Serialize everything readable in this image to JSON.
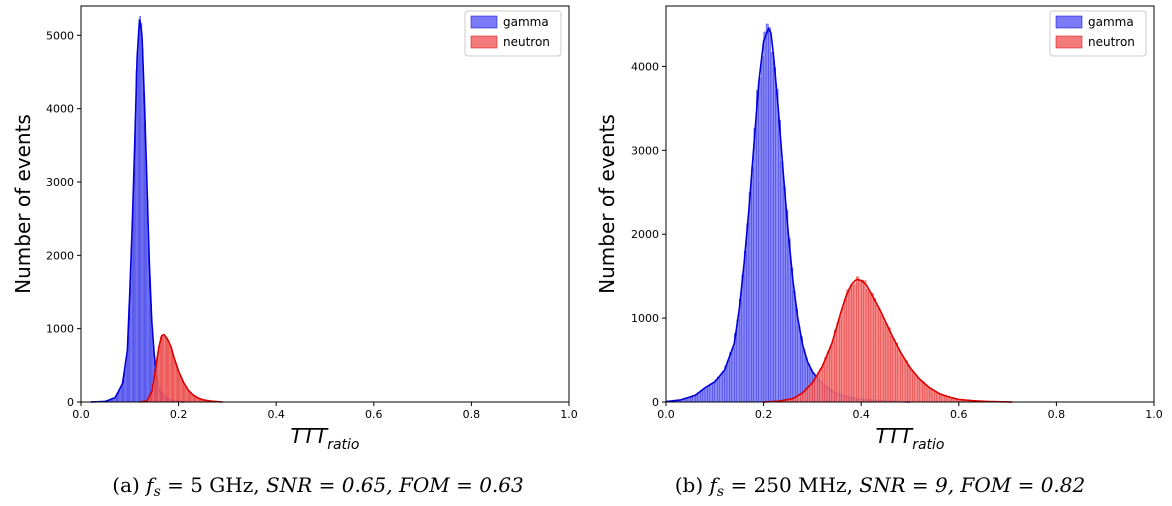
{
  "chart_data": [
    {
      "type": "bar",
      "panel": "a",
      "caption": {
        "prefix": "(a) ",
        "fs_symbol": "f",
        "fs_sub": "s",
        "fs_value": " = 5 GHz, ",
        "snr": "SNR = 0.65, ",
        "fom": "FOM = 0.63"
      },
      "xlabel": {
        "main": "TTT",
        "sub": "ratio"
      },
      "ylabel": "Number of events",
      "xlim": [
        0.0,
        1.0
      ],
      "ylim": [
        0,
        5400
      ],
      "xticks": [
        "0.0",
        "0.2",
        "0.4",
        "0.6",
        "0.8",
        "1.0"
      ],
      "yticks": [
        "0",
        "1000",
        "2000",
        "3000",
        "4000",
        "5000"
      ],
      "legend_position": "top-right",
      "series": [
        {
          "name": "gamma",
          "fill_color": "#7b7bf6",
          "line_color": "#0000dd",
          "bin_width": 0.0025,
          "points": [
            [
              0.02,
              0
            ],
            [
              0.05,
              8
            ],
            [
              0.07,
              60
            ],
            [
              0.085,
              250
            ],
            [
              0.095,
              700
            ],
            [
              0.1,
              1500
            ],
            [
              0.105,
              2400
            ],
            [
              0.11,
              3500
            ],
            [
              0.115,
              4700
            ],
            [
              0.12,
              5230
            ],
            [
              0.125,
              5000
            ],
            [
              0.13,
              4100
            ],
            [
              0.135,
              3000
            ],
            [
              0.14,
              1900
            ],
            [
              0.145,
              1100
            ],
            [
              0.15,
              650
            ],
            [
              0.155,
              350
            ],
            [
              0.16,
              170
            ],
            [
              0.17,
              80
            ],
            [
              0.18,
              35
            ],
            [
              0.19,
              12
            ],
            [
              0.21,
              0
            ]
          ]
        },
        {
          "name": "neutron",
          "fill_color": "#f47b7b",
          "line_color": "#dd0000",
          "bin_width": 0.0025,
          "points": [
            [
              0.12,
              0
            ],
            [
              0.135,
              15
            ],
            [
              0.145,
              140
            ],
            [
              0.15,
              330
            ],
            [
              0.155,
              560
            ],
            [
              0.16,
              760
            ],
            [
              0.165,
              900
            ],
            [
              0.17,
              920
            ],
            [
              0.175,
              880
            ],
            [
              0.18,
              820
            ],
            [
              0.185,
              740
            ],
            [
              0.19,
              620
            ],
            [
              0.195,
              520
            ],
            [
              0.2,
              420
            ],
            [
              0.21,
              270
            ],
            [
              0.22,
              160
            ],
            [
              0.23,
              95
            ],
            [
              0.24,
              55
            ],
            [
              0.25,
              30
            ],
            [
              0.27,
              10
            ],
            [
              0.29,
              0
            ]
          ]
        }
      ]
    },
    {
      "type": "bar",
      "panel": "b",
      "caption": {
        "prefix": "(b) ",
        "fs_symbol": "f",
        "fs_sub": "s",
        "fs_value": " = 250 MHz, ",
        "snr": "SNR = 9, ",
        "fom": "FOM = 0.82"
      },
      "xlabel": {
        "main": "TTT",
        "sub": "ratio"
      },
      "ylabel": "Number of events",
      "xlim": [
        0.0,
        1.0
      ],
      "ylim": [
        0,
        4720
      ],
      "xticks": [
        "0.0",
        "0.2",
        "0.4",
        "0.6",
        "0.8",
        "1.0"
      ],
      "yticks": [
        "0",
        "1000",
        "2000",
        "3000",
        "4000"
      ],
      "legend_position": "top-right",
      "series": [
        {
          "name": "gamma",
          "fill_color": "#7b7bf6",
          "line_color": "#0000dd",
          "bin_width": 0.005,
          "points": [
            [
              0.0,
              5
            ],
            [
              0.03,
              25
            ],
            [
              0.06,
              80
            ],
            [
              0.08,
              170
            ],
            [
              0.1,
              240
            ],
            [
              0.12,
              380
            ],
            [
              0.14,
              700
            ],
            [
              0.15,
              1100
            ],
            [
              0.16,
              1650
            ],
            [
              0.17,
              2300
            ],
            [
              0.18,
              3050
            ],
            [
              0.19,
              3800
            ],
            [
              0.2,
              4300
            ],
            [
              0.21,
              4450
            ],
            [
              0.215,
              4400
            ],
            [
              0.22,
              4150
            ],
            [
              0.23,
              3500
            ],
            [
              0.24,
              2750
            ],
            [
              0.25,
              2050
            ],
            [
              0.26,
              1450
            ],
            [
              0.27,
              1000
            ],
            [
              0.28,
              680
            ],
            [
              0.29,
              480
            ],
            [
              0.3,
              360
            ],
            [
              0.32,
              220
            ],
            [
              0.34,
              130
            ],
            [
              0.36,
              80
            ],
            [
              0.38,
              50
            ],
            [
              0.4,
              30
            ],
            [
              0.45,
              10
            ],
            [
              0.5,
              0
            ]
          ]
        },
        {
          "name": "neutron",
          "fill_color": "#f47b7b",
          "line_color": "#dd0000",
          "bin_width": 0.005,
          "points": [
            [
              0.2,
              0
            ],
            [
              0.23,
              10
            ],
            [
              0.26,
              40
            ],
            [
              0.28,
              110
            ],
            [
              0.3,
              230
            ],
            [
              0.32,
              420
            ],
            [
              0.34,
              700
            ],
            [
              0.35,
              900
            ],
            [
              0.36,
              1100
            ],
            [
              0.37,
              1280
            ],
            [
              0.38,
              1400
            ],
            [
              0.39,
              1460
            ],
            [
              0.4,
              1450
            ],
            [
              0.41,
              1400
            ],
            [
              0.42,
              1300
            ],
            [
              0.44,
              1080
            ],
            [
              0.46,
              830
            ],
            [
              0.48,
              600
            ],
            [
              0.5,
              410
            ],
            [
              0.52,
              270
            ],
            [
              0.54,
              170
            ],
            [
              0.56,
              100
            ],
            [
              0.58,
              60
            ],
            [
              0.6,
              30
            ],
            [
              0.63,
              15
            ],
            [
              0.66,
              6
            ],
            [
              0.71,
              0
            ]
          ]
        }
      ]
    }
  ]
}
